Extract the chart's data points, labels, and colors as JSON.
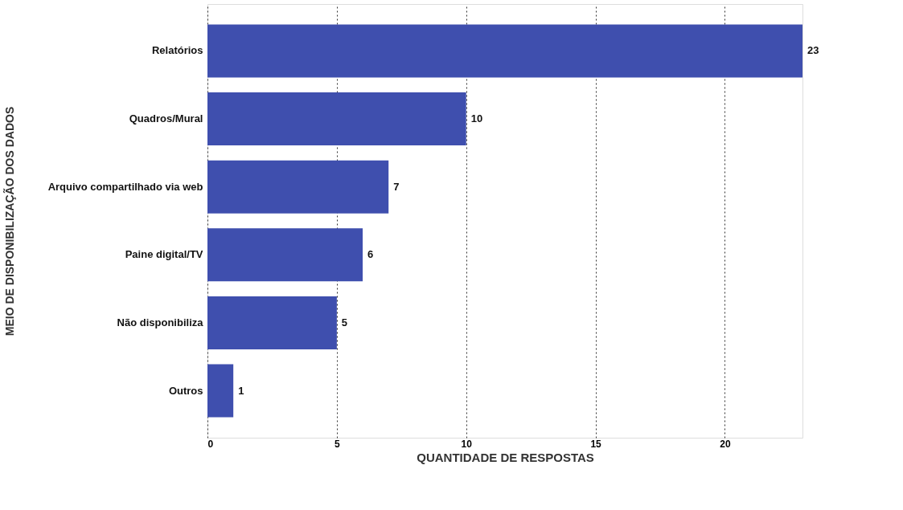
{
  "chart_data": {
    "type": "bar",
    "orientation": "horizontal",
    "xlabel": "QUANTIDADE DE RESPOSTAS",
    "ylabel": "MEIO DE DISPONIBILIZAÇÃO DOS DADOS",
    "categories": [
      "Relatórios",
      "Quadros/Mural",
      "Arquivo compartilhado via web",
      "Paine digital/TV",
      "Não disponibiliza",
      "Outros"
    ],
    "values": [
      23,
      10,
      7,
      6,
      5,
      1
    ],
    "color": "#3f4fae",
    "xlim": [
      0,
      23
    ],
    "xticks": [
      0,
      5,
      10,
      15,
      20
    ],
    "grid": "x",
    "data_labels": true
  }
}
